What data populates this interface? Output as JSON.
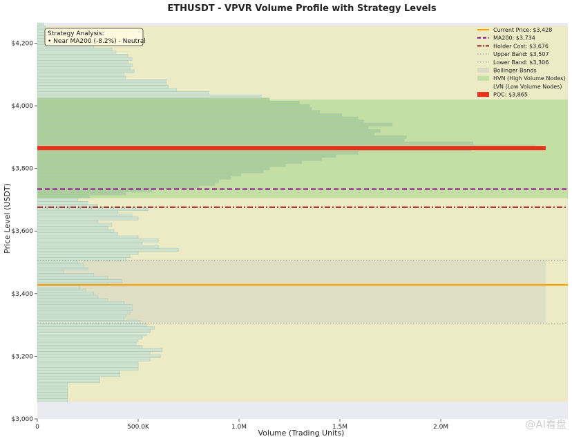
{
  "chart_data": {
    "type": "bar",
    "orientation": "horizontal",
    "title": "ETHUSDT - VPVR Volume Profile with Strategy Levels",
    "xlabel": "Volume (Trading Units)",
    "ylabel": "Price Level (USDT)",
    "xlim": [
      0,
      2630000
    ],
    "ylim": [
      3000,
      4265
    ],
    "x_ticks": [
      0,
      500000,
      1000000,
      1500000,
      2000000
    ],
    "x_tick_labels": [
      "0",
      "500.0K",
      "1.0M",
      "1.5M",
      "2.0M"
    ],
    "y_ticks": [
      3000,
      3200,
      3400,
      3600,
      3800,
      4000,
      4200
    ],
    "y_tick_labels": [
      "$3,000",
      "$3,200",
      "$3,400",
      "$3,600",
      "$3,800",
      "$4,000",
      "$4,200"
    ],
    "bar_color": "#c9dfcf",
    "bar_edge": "#a9c9b4",
    "hvn_bar_color": "#a8cc98",
    "lvn_bar_color": "#e3e6bd",
    "bin_size": 10,
    "bins_start": [
      3055,
      3065,
      3075,
      3085,
      3095,
      3105,
      3115,
      3125,
      3135,
      3145,
      3155,
      3165,
      3175,
      3185,
      3195,
      3205,
      3215,
      3225,
      3235,
      3245,
      3255,
      3265,
      3275,
      3285,
      3295,
      3305,
      3315,
      3325,
      3335,
      3345,
      3355,
      3365,
      3375,
      3385,
      3395,
      3405,
      3415,
      3425,
      3435,
      3445,
      3455,
      3465,
      3475,
      3485,
      3495,
      3505,
      3515,
      3525,
      3535,
      3545,
      3555,
      3565,
      3575,
      3585,
      3595,
      3605,
      3615,
      3625,
      3635,
      3645,
      3655,
      3665,
      3675,
      3685,
      3695,
      3705,
      3715,
      3725,
      3735,
      3745,
      3755,
      3765,
      3775,
      3785,
      3795,
      3805,
      3815,
      3825,
      3835,
      3845,
      3855,
      3865,
      3875,
      3885,
      3895,
      3905,
      3915,
      3925,
      3935,
      3945,
      3955,
      3965,
      3975,
      3985,
      3995,
      4005,
      4015,
      4025,
      4035,
      4045,
      4055,
      4065,
      4075,
      4085,
      4095,
      4105,
      4115,
      4125,
      4135,
      4145,
      4155,
      4165,
      4175,
      4185,
      4195,
      4205,
      4215,
      4225,
      4235,
      4245,
      4255
    ],
    "volumes": [
      150000,
      150000,
      150000,
      150000,
      150000,
      150000,
      310000,
      310000,
      410000,
      410000,
      500000,
      500000,
      500000,
      560000,
      610000,
      560000,
      620000,
      520000,
      490000,
      500000,
      520000,
      540000,
      560000,
      580000,
      540000,
      510000,
      430000,
      440000,
      460000,
      470000,
      470000,
      430000,
      350000,
      300000,
      280000,
      240000,
      210000,
      350000,
      420000,
      350000,
      280000,
      130000,
      250000,
      230000,
      200000,
      440000,
      460000,
      500000,
      700000,
      600000,
      520000,
      600000,
      500000,
      400000,
      380000,
      350000,
      370000,
      300000,
      500000,
      470000,
      400000,
      550000,
      300000,
      250000,
      200000,
      260000,
      440000,
      570000,
      800000,
      880000,
      900000,
      960000,
      1010000,
      1120000,
      1150000,
      1230000,
      1310000,
      1410000,
      1480000,
      1590000,
      2150000,
      2470000,
      2160000,
      1820000,
      1830000,
      1670000,
      1700000,
      1640000,
      1760000,
      1620000,
      1590000,
      1510000,
      1400000,
      1360000,
      1350000,
      1300000,
      1150000,
      1110000,
      850000,
      690000,
      650000,
      640000,
      640000,
      440000,
      430000,
      480000,
      460000,
      470000,
      450000,
      470000,
      450000,
      390000,
      370000,
      280000,
      240000,
      200000,
      180000,
      80000,
      80000,
      40000,
      30000
    ],
    "hvn_volumes": [
      2630000
    ],
    "levels": [
      {
        "name": "Current Price: $3,428",
        "price": 3428,
        "color": "#f5a30e",
        "style": "solid"
      },
      {
        "name": "MA200: $3,734",
        "price": 3734,
        "color": "#8a008a",
        "style": "dash"
      },
      {
        "name": "Holder Cost: $3,676",
        "price": 3676,
        "color": "#8b1a1a",
        "style": "dashdot"
      },
      {
        "name": "Upper Band: $3,507",
        "price": 3507,
        "color": "#999999",
        "style": "dotted"
      },
      {
        "name": "Lower Band: $3,306",
        "price": 3306,
        "color": "#999999",
        "style": "dotted"
      }
    ],
    "bollinger_band": {
      "name": "Bollinger Bands",
      "upper": 3507,
      "lower": 3306,
      "x_max": 2520000,
      "color": "#d9d9c4"
    },
    "hvn_zone": {
      "name": "HVN (High Volume Nodes)",
      "lower": 3705,
      "upper": 4020,
      "color": "#c4dfa4"
    },
    "lvn_zone": {
      "name": "LVN (Low Volume Nodes)",
      "lower": 3055,
      "upper": 4255,
      "color": "#ecebc6"
    },
    "poc": {
      "name": "POC: $3,865",
      "price": 3865,
      "x_max": 2520000,
      "color": "#e8321c"
    },
    "legend_position": "top-right",
    "annotation": {
      "title": "Strategy Analysis:",
      "line": "• Near MA200 (-8.2%) - Neutral"
    }
  },
  "watermark": "@AI看盘"
}
